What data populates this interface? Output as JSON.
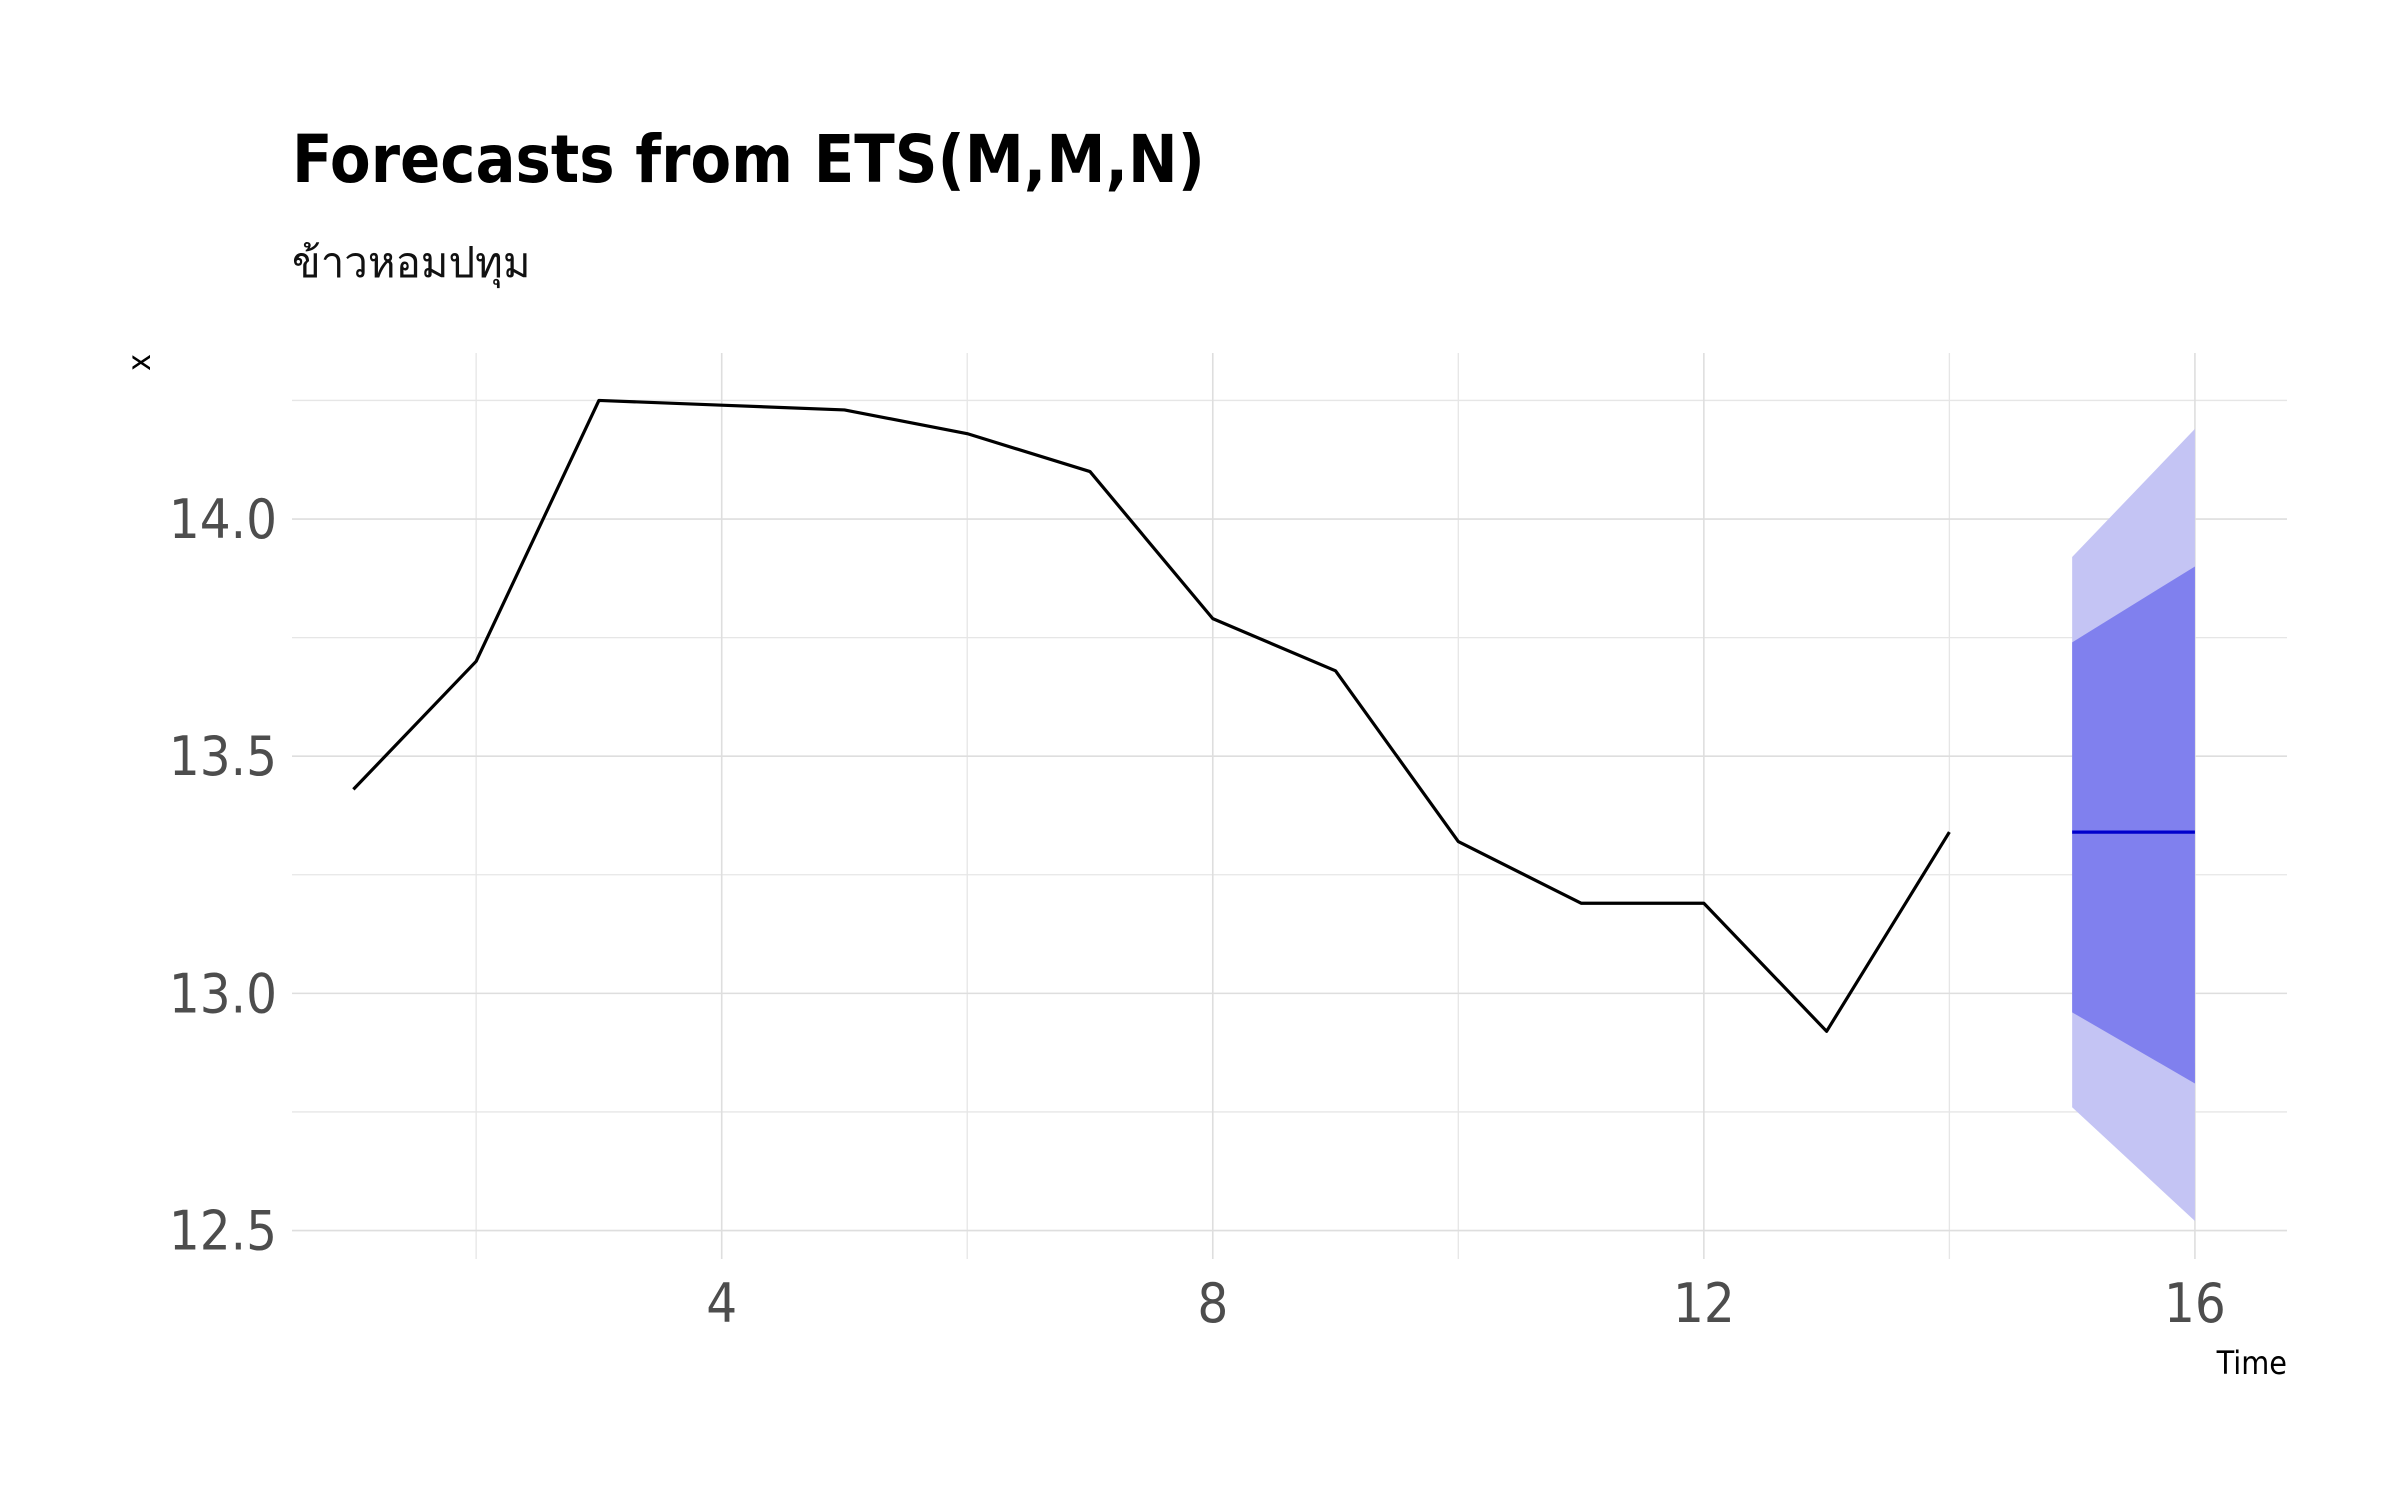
{
  "chart_data": {
    "type": "line",
    "title": "Forecasts from ETS(M,M,N)",
    "subtitle": "ข้าวหอมปทุม",
    "xlabel": "Time",
    "ylabel": "x",
    "xlim": [
      0.5,
      16.75
    ],
    "ylim": [
      12.44,
      14.35
    ],
    "x_ticks": [
      4,
      8,
      12,
      16
    ],
    "y_ticks": [
      12.5,
      13.0,
      13.5,
      14.0
    ],
    "x_tick_labels": [
      "4",
      "8",
      "12",
      "16"
    ],
    "y_tick_labels": [
      "12.5",
      "13.0",
      "13.5",
      "14.0"
    ],
    "grid": true,
    "series": [
      {
        "role": "observed",
        "color": "#000000",
        "x": [
          1,
          2,
          3,
          4,
          5,
          6,
          7,
          8,
          9,
          10,
          11,
          12,
          13,
          14
        ],
        "y": [
          13.43,
          13.7,
          14.25,
          14.24,
          14.23,
          14.18,
          14.1,
          13.79,
          13.68,
          13.32,
          13.19,
          13.19,
          12.92,
          13.34
        ]
      },
      {
        "role": "forecast",
        "color": "#0000cc",
        "x": [
          15,
          16
        ],
        "y": [
          13.34,
          13.34
        ]
      }
    ],
    "intervals": [
      {
        "level": 95,
        "color": "#c4c4f4",
        "x": [
          15,
          16
        ],
        "lower": [
          12.76,
          12.52
        ],
        "upper": [
          13.92,
          14.19
        ]
      },
      {
        "level": 80,
        "color": "#8080ee",
        "x": [
          15,
          16
        ],
        "lower": [
          12.96,
          12.81
        ],
        "upper": [
          13.74,
          13.9
        ]
      }
    ]
  }
}
